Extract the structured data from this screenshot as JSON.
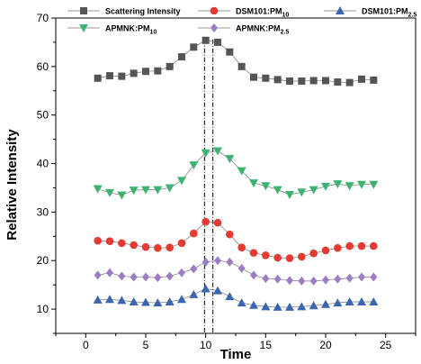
{
  "chart_data": {
    "type": "line",
    "title": "",
    "xlabel": "Time",
    "ylabel": "Relative Intensity",
    "xlim": [
      -2.5,
      27.5
    ],
    "ylim": [
      5,
      70
    ],
    "xticks": [
      0,
      5,
      10,
      15,
      20,
      25
    ],
    "yticks": [
      10,
      20,
      30,
      40,
      50,
      60,
      70
    ],
    "grid": false,
    "legend_position": "top",
    "vlines": [
      9.9,
      10.6
    ],
    "x": [
      1,
      2,
      3,
      4,
      5,
      6,
      7,
      8,
      9,
      10,
      11,
      12,
      13,
      14,
      15,
      16,
      17,
      18,
      19,
      20,
      21,
      22,
      23,
      24
    ],
    "series": [
      {
        "name": "Scattering Intensity",
        "legend_main": "Scattering Intensity",
        "legend_sub": "",
        "marker": "square",
        "color": "#555555",
        "values": [
          57.6,
          58.1,
          58.0,
          58.6,
          59.0,
          59.1,
          60.0,
          62.0,
          64.0,
          65.4,
          65.0,
          63.0,
          60.0,
          57.8,
          57.6,
          57.3,
          57.0,
          57.0,
          57.1,
          57.1,
          56.8,
          56.7,
          57.4,
          57.2
        ]
      },
      {
        "name": "DSM101:PM10",
        "legend_main": "DSM101:PM",
        "legend_sub": "10",
        "marker": "circle",
        "color": "#e53a32",
        "values": [
          24.1,
          24.0,
          23.6,
          23.2,
          22.8,
          22.6,
          22.7,
          23.6,
          25.6,
          28.0,
          27.8,
          25.4,
          22.7,
          21.6,
          21.1,
          20.6,
          20.5,
          20.8,
          21.5,
          22.1,
          22.6,
          23.0,
          23.0,
          23.0
        ]
      },
      {
        "name": "DSM101:PM2.5",
        "legend_main": "DSM101:PM",
        "legend_sub": "2.5",
        "marker": "triangle-up",
        "color": "#3a66b0",
        "values": [
          11.9,
          12.0,
          11.8,
          11.5,
          11.4,
          11.3,
          11.5,
          12.0,
          13.0,
          14.2,
          13.8,
          12.6,
          11.3,
          10.8,
          10.5,
          10.4,
          10.4,
          10.5,
          10.7,
          11.0,
          11.3,
          11.5,
          11.5,
          11.5
        ]
      },
      {
        "name": "APMNK:PM10",
        "legend_main": "APMNK:PM",
        "legend_sub": "10",
        "marker": "triangle-down",
        "color": "#3cb371",
        "values": [
          34.8,
          34.0,
          33.5,
          34.5,
          34.6,
          34.6,
          35.0,
          36.5,
          39.7,
          42.2,
          42.6,
          41.0,
          38.5,
          36.0,
          35.4,
          34.6,
          33.6,
          34.1,
          34.6,
          35.3,
          35.8,
          35.4,
          35.7,
          35.7
        ]
      },
      {
        "name": "APMNK:PM2.5",
        "legend_main": "APMNK:PM",
        "legend_sub": "2.5",
        "marker": "diamond",
        "color": "#9c7cc4",
        "values": [
          17.0,
          17.5,
          16.8,
          16.6,
          16.6,
          16.5,
          16.8,
          17.5,
          18.3,
          19.7,
          20.0,
          19.7,
          18.4,
          17.0,
          16.3,
          16.2,
          15.9,
          15.8,
          15.8,
          16.0,
          16.2,
          16.4,
          16.6,
          16.6
        ]
      }
    ]
  }
}
